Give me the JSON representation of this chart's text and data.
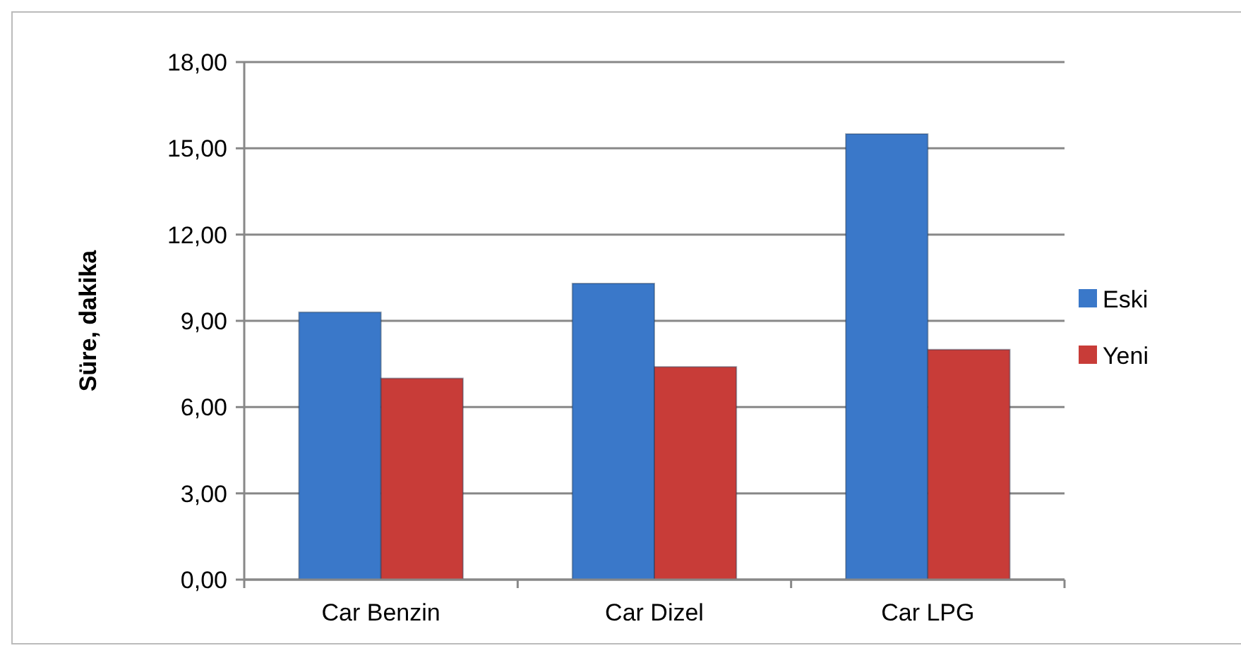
{
  "chart_data": {
    "type": "bar",
    "ylabel": "Süre, dakika",
    "categories": [
      "Car Benzin",
      "Car Dizel",
      "Car LPG"
    ],
    "series": [
      {
        "name": "Eski",
        "color": "#3a78c9",
        "values": [
          9.3,
          10.3,
          15.5
        ]
      },
      {
        "name": "Yeni",
        "color": "#c83c38",
        "values": [
          7.0,
          7.4,
          8.0
        ]
      }
    ],
    "ylim": [
      0,
      18
    ],
    "yticks": [
      {
        "value": 0,
        "label": "0,00"
      },
      {
        "value": 3,
        "label": "3,00"
      },
      {
        "value": 6,
        "label": "6,00"
      },
      {
        "value": 9,
        "label": "9,00"
      },
      {
        "value": 12,
        "label": "12,00"
      },
      {
        "value": 15,
        "label": "15,00"
      },
      {
        "value": 18,
        "label": "18,00"
      }
    ],
    "grid": "y",
    "legend": "right"
  }
}
